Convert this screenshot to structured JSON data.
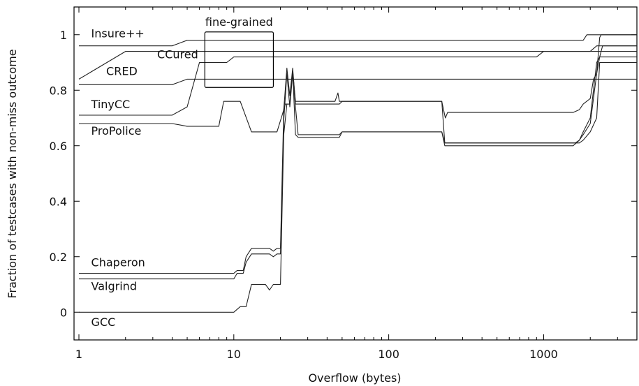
{
  "chart_data": {
    "type": "line",
    "title": "",
    "xlabel": "Overflow (bytes)",
    "ylabel": "Fraction of testcases with non-miss outcome",
    "xscale": "log",
    "xlim": [
      0.93,
      4000
    ],
    "ylim": [
      -0.1,
      1.1
    ],
    "xticks": [
      {
        "value": 1,
        "label": "1"
      },
      {
        "value": 10,
        "label": "10"
      },
      {
        "value": 100,
        "label": "100"
      },
      {
        "value": 1000,
        "label": "1000"
      }
    ],
    "yticks": [
      {
        "value": 0,
        "label": "0"
      },
      {
        "value": 0.2,
        "label": "0.2"
      },
      {
        "value": 0.4,
        "label": "0.4"
      },
      {
        "value": 0.6,
        "label": "0.6"
      },
      {
        "value": 0.8,
        "label": "0.8"
      },
      {
        "value": 1,
        "label": "1"
      }
    ],
    "grid": false,
    "legend": "inline labels at left",
    "line_color": "#222222",
    "annotation": {
      "label": "fine-grained",
      "x_range": [
        6.5,
        18
      ],
      "y_range": [
        0.81,
        1.01
      ]
    },
    "series": [
      {
        "name": "Insure++",
        "x": [
          1,
          4,
          5,
          20,
          1800,
          1900,
          4000
        ],
        "y": [
          0.96,
          0.96,
          0.98,
          0.98,
          0.98,
          1.0,
          1.0
        ]
      },
      {
        "name": "CCured",
        "x": [
          1,
          2,
          8,
          10,
          900,
          2000,
          2200,
          4000
        ],
        "y": [
          0.84,
          0.94,
          0.94,
          0.94,
          0.94,
          0.94,
          0.96,
          0.96
        ]
      },
      {
        "name": "CRED",
        "x": [
          1,
          4,
          5,
          9,
          10,
          12,
          900,
          1000,
          4000
        ],
        "y": [
          0.82,
          0.82,
          0.84,
          0.84,
          0.84,
          0.84,
          0.84,
          0.84,
          0.84
        ]
      },
      {
        "name": "TinyCC",
        "x": [
          1,
          4,
          5,
          6,
          9,
          10,
          12,
          900,
          1000,
          4000
        ],
        "y": [
          0.71,
          0.71,
          0.74,
          0.9,
          0.9,
          0.92,
          0.92,
          0.92,
          0.94,
          0.94
        ]
      },
      {
        "name": "ProPolice",
        "x": [
          1,
          4,
          5,
          8,
          8.6,
          11,
          13,
          19,
          20.5,
          21.5,
          23,
          24,
          25,
          45,
          47,
          48,
          220,
          228,
          232,
          240,
          1550,
          1700,
          1800,
          2000,
          2100,
          2200,
          2300,
          2350,
          4000
        ],
        "y": [
          0.68,
          0.68,
          0.67,
          0.67,
          0.76,
          0.76,
          0.65,
          0.65,
          0.71,
          0.75,
          0.75,
          0.87,
          0.76,
          0.76,
          0.79,
          0.76,
          0.76,
          0.72,
          0.7,
          0.72,
          0.72,
          0.73,
          0.75,
          0.77,
          0.84,
          0.86,
          0.99,
          1.0,
          1.0
        ]
      },
      {
        "name": "Chaperon",
        "x": [
          1,
          10,
          10.5,
          11.5,
          12,
          13,
          17,
          18,
          19,
          20,
          21,
          22,
          23,
          24,
          25,
          26,
          48,
          50,
          220,
          230,
          240,
          1700,
          1800,
          2000,
          2200,
          2300,
          4000
        ],
        "y": [
          0.14,
          0.14,
          0.15,
          0.15,
          0.2,
          0.23,
          0.23,
          0.22,
          0.23,
          0.23,
          0.73,
          0.88,
          0.78,
          0.88,
          0.75,
          0.75,
          0.75,
          0.76,
          0.76,
          0.61,
          0.61,
          0.61,
          0.62,
          0.65,
          0.7,
          0.9,
          0.9
        ]
      },
      {
        "name": "Valgrind",
        "x": [
          1,
          10,
          10.5,
          11.5,
          12,
          13,
          17,
          18,
          19,
          20,
          21,
          22,
          23,
          24,
          25,
          26,
          48,
          50,
          220,
          230,
          240,
          1600,
          1700,
          1800,
          2000,
          2200,
          2300,
          2400,
          4000
        ],
        "y": [
          0.12,
          0.12,
          0.14,
          0.14,
          0.18,
          0.21,
          0.21,
          0.2,
          0.21,
          0.21,
          0.69,
          0.86,
          0.74,
          0.86,
          0.74,
          0.64,
          0.64,
          0.65,
          0.65,
          0.61,
          0.61,
          0.61,
          0.62,
          0.64,
          0.68,
          0.86,
          0.92,
          0.96,
          0.96
        ]
      },
      {
        "name": "GCC",
        "x": [
          1,
          10,
          11,
          12,
          13,
          16,
          17,
          18,
          19,
          20,
          21,
          22,
          23,
          24,
          25,
          26,
          48,
          50,
          220,
          230,
          240,
          1550,
          1700,
          1800,
          2000,
          2200,
          2300,
          4000
        ],
        "y": [
          0,
          0,
          0.02,
          0.02,
          0.1,
          0.1,
          0.08,
          0.1,
          0.1,
          0.1,
          0.64,
          0.75,
          0.75,
          0.87,
          0.64,
          0.63,
          0.63,
          0.65,
          0.65,
          0.6,
          0.6,
          0.6,
          0.62,
          0.65,
          0.7,
          0.9,
          0.92,
          0.92
        ]
      }
    ],
    "series_labels": [
      {
        "series": "Insure++",
        "x": 1.2,
        "y": 0.99
      },
      {
        "series": "CCured",
        "x": 3.2,
        "y": 0.915
      },
      {
        "series": "CRED",
        "x": 1.5,
        "y": 0.855
      },
      {
        "series": "TinyCC",
        "x": 1.2,
        "y": 0.735
      },
      {
        "series": "ProPolice",
        "x": 1.2,
        "y": 0.64
      },
      {
        "series": "Chaperon",
        "x": 1.2,
        "y": 0.165
      },
      {
        "series": "Valgrind",
        "x": 1.2,
        "y": 0.08
      },
      {
        "series": "GCC",
        "x": 1.2,
        "y": -0.05
      }
    ]
  }
}
